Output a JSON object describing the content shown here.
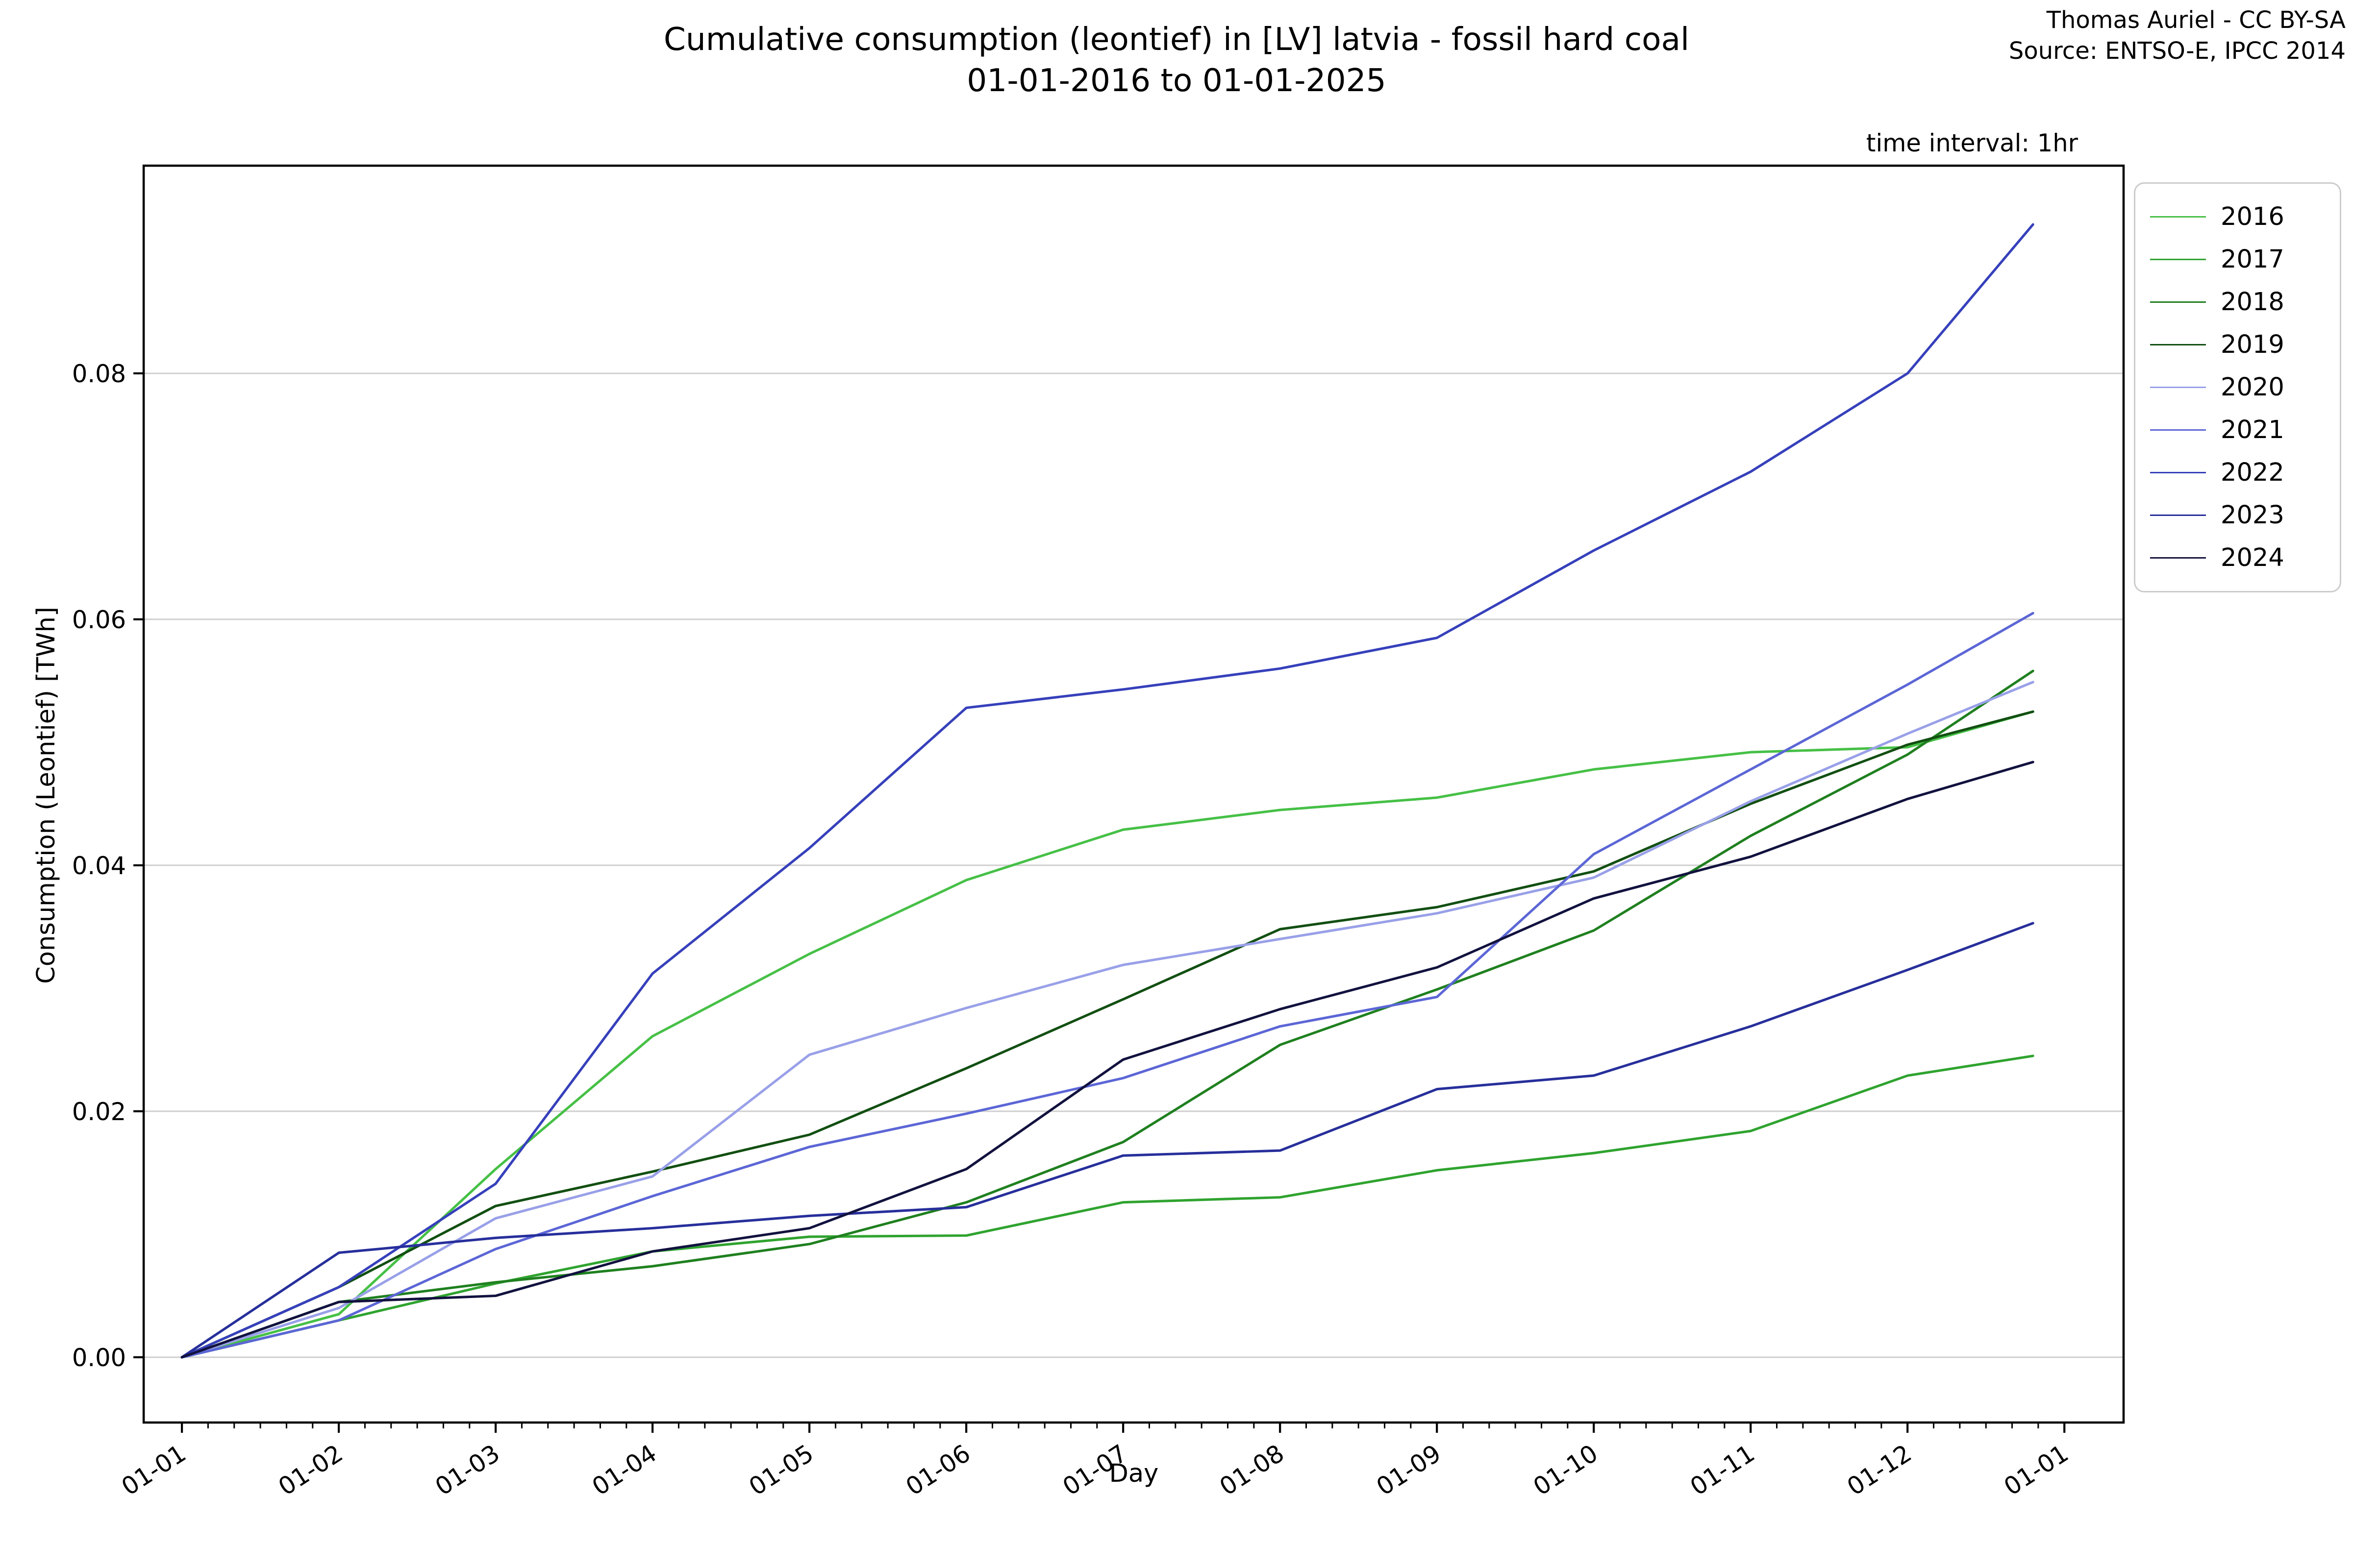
{
  "header": {
    "title_line1": "Cumulative consumption (leontief) in [LV] latvia - fossil hard coal",
    "title_line2": "01-01-2016 to 01-01-2025",
    "attribution_line1": "Thomas Auriel - CC BY-SA",
    "attribution_line2": "Source: ENTSO-E, IPCC 2014",
    "time_interval_note": "time interval: 1hr"
  },
  "axes": {
    "xlabel": "Day",
    "ylabel": "Consumption (Leontief) [TWh]",
    "x_tick_labels": [
      "01-01",
      "01-02",
      "01-03",
      "01-04",
      "01-05",
      "01-06",
      "01-07",
      "01-08",
      "01-09",
      "01-10",
      "01-11",
      "01-12",
      "01-01"
    ],
    "y_tick_labels": [
      "0.00",
      "0.02",
      "0.04",
      "0.06",
      "0.08"
    ],
    "y_tick_values": [
      0.0,
      0.02,
      0.04,
      0.06,
      0.08
    ],
    "grid": "horizontal gridlines on, light gray",
    "legend_position": "upper right, outside plot"
  },
  "chart_data": {
    "type": "line",
    "title": "Cumulative consumption (leontief) in [LV] latvia - fossil hard coal 01-01-2016 to 01-01-2025",
    "xlabel": "Day",
    "ylabel": "Consumption (Leontief) [TWh]",
    "x_tick_labels": [
      "01-01",
      "01-02",
      "01-03",
      "01-04",
      "01-05",
      "01-06",
      "01-07",
      "01-08",
      "01-09",
      "01-10",
      "01-11",
      "01-12",
      "01-01"
    ],
    "sample_x_month_index": [
      0,
      1,
      2,
      3,
      4,
      5,
      6,
      7,
      8,
      9,
      10,
      11,
      11.8
    ],
    "ylim": [
      -0.0053,
      0.0969
    ],
    "y_ticks": [
      0.0,
      0.02,
      0.04,
      0.06,
      0.08
    ],
    "series": [
      {
        "name": "2016",
        "color": "#46c046",
        "values": [
          0,
          0.0035,
          0.0153,
          0.0261,
          0.0328,
          0.0388,
          0.0429,
          0.0445,
          0.0455,
          0.0478,
          0.0492,
          0.0496,
          0.0525
        ]
      },
      {
        "name": "2017",
        "color": "#2fa32f",
        "values": [
          0,
          0.003,
          0.006,
          0.0086,
          0.0098,
          0.0099,
          0.0126,
          0.013,
          0.0152,
          0.0166,
          0.0184,
          0.0229,
          0.0245
        ]
      },
      {
        "name": "2018",
        "color": "#1f801f",
        "values": [
          0,
          0.0045,
          0.0061,
          0.0074,
          0.0092,
          0.0126,
          0.0175,
          0.0254,
          0.0299,
          0.0347,
          0.0424,
          0.049,
          0.0558
        ]
      },
      {
        "name": "2019",
        "color": "#124f12",
        "values": [
          0,
          0.0057,
          0.0123,
          0.0151,
          0.0181,
          0.0235,
          0.0291,
          0.0348,
          0.0366,
          0.0395,
          0.045,
          0.0498,
          0.0525
        ]
      },
      {
        "name": "2020",
        "color": "#99a0e8",
        "values": [
          0,
          0.004,
          0.0113,
          0.0147,
          0.0246,
          0.0284,
          0.0319,
          0.034,
          0.0361,
          0.039,
          0.0452,
          0.0507,
          0.0549
        ]
      },
      {
        "name": "2021",
        "color": "#5c66d6",
        "values": [
          0,
          0.003,
          0.0088,
          0.0131,
          0.0171,
          0.0198,
          0.0227,
          0.0269,
          0.0293,
          0.0409,
          0.0478,
          0.0547,
          0.0605
        ]
      },
      {
        "name": "2022",
        "color": "#3640bb",
        "values": [
          0,
          0.0057,
          0.0141,
          0.0312,
          0.0414,
          0.0528,
          0.0543,
          0.056,
          0.0585,
          0.0656,
          0.072,
          0.08,
          0.0921
        ]
      },
      {
        "name": "2023",
        "color": "#272f9b",
        "values": [
          0,
          0.0085,
          0.0097,
          0.0105,
          0.0115,
          0.0122,
          0.0164,
          0.0168,
          0.0218,
          0.0229,
          0.0269,
          0.0315,
          0.0353
        ]
      },
      {
        "name": "2024",
        "color": "#12123f",
        "values": [
          0,
          0.0045,
          0.005,
          0.0086,
          0.0105,
          0.0153,
          0.0242,
          0.0283,
          0.0317,
          0.0373,
          0.0407,
          0.0454,
          0.0484
        ]
      }
    ]
  }
}
